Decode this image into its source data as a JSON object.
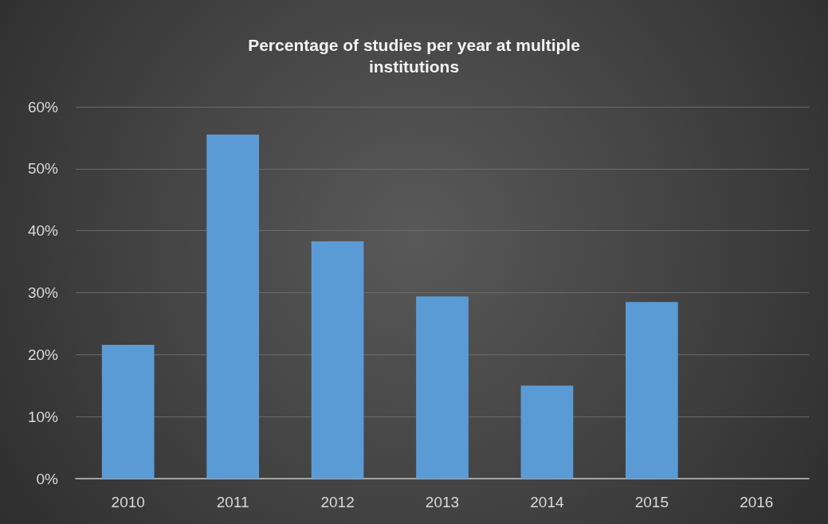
{
  "chart_data": {
    "type": "bar",
    "title": "Percentage of studies per year at multiple\ninstitutions",
    "categories": [
      "2010",
      "2011",
      "2012",
      "2013",
      "2014",
      "2015",
      "2016"
    ],
    "values": [
      21.6,
      55.5,
      38.3,
      29.4,
      15.0,
      28.5,
      0
    ],
    "color": "#5b9bd5",
    "ylim": [
      0,
      60
    ],
    "yticks": [
      {
        "value": 0,
        "label": "0%"
      },
      {
        "value": 10,
        "label": "10%"
      },
      {
        "value": 20,
        "label": "20%"
      },
      {
        "value": 30,
        "label": "30%"
      },
      {
        "value": 40,
        "label": "40%"
      },
      {
        "value": 50,
        "label": "50%"
      },
      {
        "value": 60,
        "label": "60%"
      }
    ],
    "grid": "y"
  }
}
